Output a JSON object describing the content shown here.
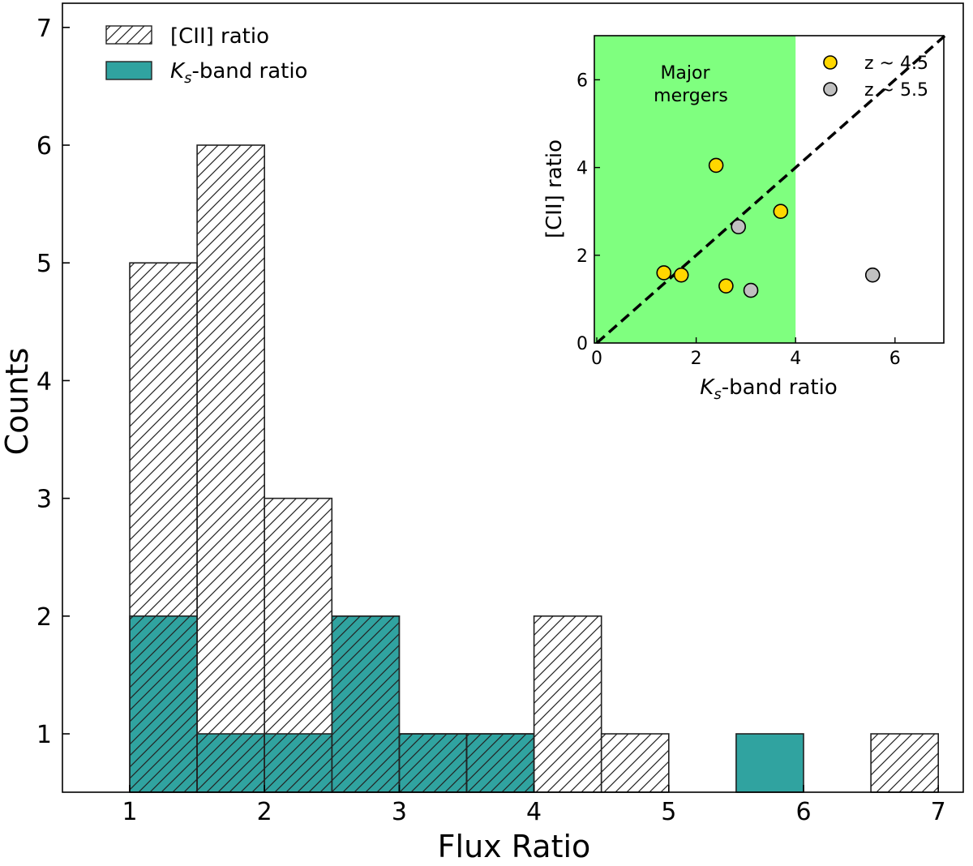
{
  "chart_data": [
    {
      "type": "bar",
      "subtype": "histogram",
      "xlabel": "Flux Ratio",
      "ylabel": "Counts",
      "xlim": [
        0.45,
        7.2
      ],
      "ylim": [
        0.5,
        7.2
      ],
      "xticks": [
        "1",
        "2",
        "3",
        "4",
        "5",
        "6",
        "7"
      ],
      "yticks": [
        "1",
        "2",
        "3",
        "4",
        "5",
        "6",
        "7"
      ],
      "bin_width": 0.5,
      "series": [
        {
          "name": "[CII] ratio",
          "style": "hatched",
          "bins": [
            {
              "x0": 1.0,
              "x1": 1.5,
              "value": 5
            },
            {
              "x0": 1.5,
              "x1": 2.0,
              "value": 6
            },
            {
              "x0": 2.0,
              "x1": 2.5,
              "value": 3
            },
            {
              "x0": 2.5,
              "x1": 3.0,
              "value": 2
            },
            {
              "x0": 3.0,
              "x1": 3.5,
              "value": 1
            },
            {
              "x0": 3.5,
              "x1": 4.0,
              "value": 1
            },
            {
              "x0": 4.0,
              "x1": 4.5,
              "value": 2
            },
            {
              "x0": 4.5,
              "x1": 5.0,
              "value": 1
            },
            {
              "x0": 6.5,
              "x1": 7.0,
              "value": 1
            }
          ]
        },
        {
          "name": "Ks-band ratio",
          "name_main": "K",
          "name_sub": "s",
          "name_rest": "-band ratio",
          "color": "#30A3A0",
          "bins": [
            {
              "x0": 1.0,
              "x1": 1.5,
              "value": 2
            },
            {
              "x0": 1.5,
              "x1": 2.0,
              "value": 1
            },
            {
              "x0": 2.0,
              "x1": 2.5,
              "value": 1
            },
            {
              "x0": 2.5,
              "x1": 3.0,
              "value": 2
            },
            {
              "x0": 3.0,
              "x1": 3.5,
              "value": 1
            },
            {
              "x0": 3.5,
              "x1": 4.0,
              "value": 1
            },
            {
              "x0": 5.5,
              "x1": 6.0,
              "value": 1
            }
          ]
        }
      ],
      "legend_position": "top-left"
    },
    {
      "type": "scatter",
      "position": "inset top-right",
      "xlabel": "Ks-band ratio",
      "xlabel_main": "K",
      "xlabel_sub": "s",
      "xlabel_rest": "-band ratio",
      "ylabel": "[CII] ratio",
      "xlim": [
        0,
        7
      ],
      "ylim": [
        0,
        7
      ],
      "xticks": [
        "0",
        "2",
        "4",
        "6"
      ],
      "yticks": [
        "0",
        "2",
        "4",
        "6"
      ],
      "shaded_region": {
        "label_line1": "Major",
        "label_line2": "mergers",
        "x_range": [
          0,
          4
        ],
        "color": "#7FFF7F"
      },
      "reference_line": {
        "style": "dashed",
        "from": [
          0,
          0
        ],
        "to": [
          7,
          7
        ],
        "color": "#000000"
      },
      "series": [
        {
          "name": "z ~ 4.5",
          "color": "#FFD700",
          "points": [
            {
              "x": 1.35,
              "y": 1.6
            },
            {
              "x": 1.7,
              "y": 1.55
            },
            {
              "x": 2.4,
              "y": 4.05
            },
            {
              "x": 2.6,
              "y": 1.3
            },
            {
              "x": 3.7,
              "y": 3.0
            }
          ]
        },
        {
          "name": "z ~ 5.5",
          "color": "#C0C0C0",
          "points": [
            {
              "x": 2.85,
              "y": 2.65
            },
            {
              "x": 3.1,
              "y": 1.2
            },
            {
              "x": 5.55,
              "y": 1.55
            }
          ]
        }
      ],
      "legend_position": "top-right"
    }
  ]
}
